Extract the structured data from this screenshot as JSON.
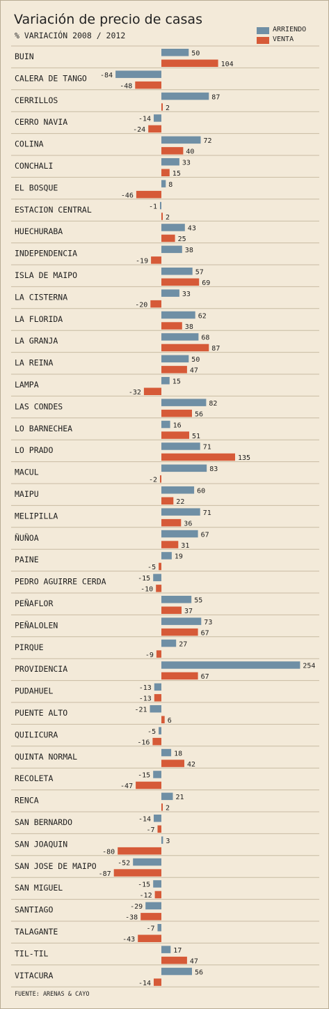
{
  "colors": {
    "arriendo": "#6f8fa5",
    "venta": "#d65a38",
    "background": "#f3ead9",
    "separator": "#c8bba2"
  },
  "title": "Variación de precio de casas",
  "subtitle": "% VARIACIÓN 2008 / 2012",
  "legend": [
    {
      "label": "ARRIENDO",
      "color": "#6f8fa5"
    },
    {
      "label": "VENTA",
      "color": "#d65a38"
    }
  ],
  "source": "FUENTE: ARENAS & CAYO",
  "chart_data": {
    "type": "bar",
    "orientation": "horizontal",
    "title": "Variación de precio de casas",
    "subtitle": "% VARIACIÓN 2008 / 2012",
    "categories": [
      "BUIN",
      "CALERA DE TANGO",
      "CERRILLOS",
      "CERRO NAVIA",
      "COLINA",
      "CONCHALI",
      "EL BOSQUE",
      "ESTACION CENTRAL",
      "HUECHURABA",
      "INDEPENDENCIA",
      "ISLA DE MAIPO",
      "LA CISTERNA",
      "LA FLORIDA",
      "LA GRANJA",
      "LA REINA",
      "LAMPA",
      "LAS CONDES",
      "LO BARNECHEA",
      "LO PRADO",
      "MACUL",
      "MAIPU",
      "MELIPILLA",
      "ÑUÑOA",
      "PAINE",
      "PEDRO AGUIRRE CERDA",
      "PEÑAFLOR",
      "PEÑALOLEN",
      "PIRQUE",
      "PROVIDENCIA",
      "PUDAHUEL",
      "PUENTE ALTO",
      "QUILICURA",
      "QUINTA NORMAL",
      "RECOLETA",
      "RENCA",
      "SAN BERNARDO",
      "SAN JOAQUIN",
      "SAN JOSE DE MAIPO",
      "SAN MIGUEL",
      "SANTIAGO",
      "TALAGANTE",
      "TIL-TIL",
      "VITACURA"
    ],
    "series": [
      {
        "name": "ARRIENDO",
        "values": [
          50,
          -84,
          87,
          -14,
          72,
          33,
          8,
          -1,
          43,
          38,
          57,
          33,
          62,
          68,
          50,
          15,
          82,
          16,
          71,
          83,
          60,
          71,
          67,
          19,
          -15,
          55,
          73,
          27,
          254,
          -13,
          -21,
          -5,
          18,
          -15,
          21,
          -14,
          3,
          -52,
          -15,
          -29,
          -7,
          17,
          56
        ]
      },
      {
        "name": "VENTA",
        "values": [
          104,
          -48,
          2,
          -24,
          40,
          15,
          -46,
          2,
          25,
          -19,
          69,
          -20,
          38,
          87,
          47,
          -32,
          56,
          51,
          135,
          -2,
          22,
          36,
          31,
          -5,
          -10,
          37,
          67,
          -9,
          67,
          -13,
          6,
          -16,
          42,
          -47,
          2,
          -7,
          -80,
          -87,
          -12,
          -38,
          -43,
          47,
          -14
        ]
      }
    ],
    "value_labels": true,
    "grid": false,
    "legend_position": "top-right"
  }
}
